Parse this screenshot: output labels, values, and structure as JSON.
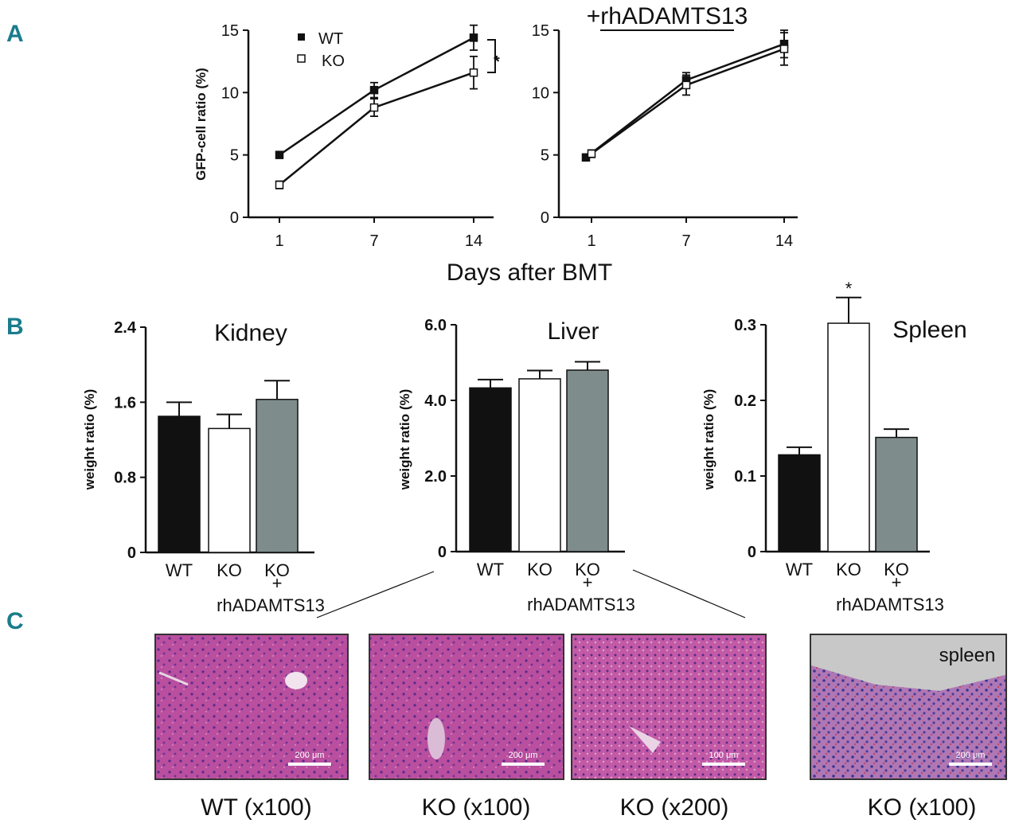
{
  "panel_labels": [
    "A",
    "B",
    "C"
  ],
  "chart_data": [
    {
      "type": "line",
      "panel": "A",
      "title": "",
      "xlabel": "Days after BMT",
      "ylabel": "GFP-cell ratio (%)",
      "x": [
        1,
        7,
        14
      ],
      "xticks": [
        "1",
        "7",
        "14"
      ],
      "ylim": [
        0,
        15
      ],
      "yticks": [
        "0",
        "5",
        "10",
        "15"
      ],
      "series": [
        {
          "name": "WT",
          "marker": "filled-square",
          "values": [
            5.0,
            10.2,
            14.4
          ],
          "errors": [
            0.2,
            0.6,
            1.0
          ]
        },
        {
          "name": "KO",
          "marker": "open-square",
          "values": [
            2.6,
            8.8,
            11.6
          ],
          "errors": [
            0.3,
            0.7,
            1.3
          ]
        }
      ],
      "annotation": "*"
    },
    {
      "type": "line",
      "panel": "A",
      "title": "+rhADAMTS13",
      "xlabel": "Days after BMT",
      "ylabel": "",
      "x": [
        1,
        7,
        14
      ],
      "xticks": [
        "1",
        "7",
        "14"
      ],
      "ylim": [
        0,
        15
      ],
      "yticks": [
        "0",
        "5",
        "10",
        "15"
      ],
      "series": [
        {
          "name": "WT",
          "marker": "filled-square",
          "values": [
            4.8,
            11.0,
            13.9
          ],
          "errors": [
            0.2,
            0.6,
            1.1
          ]
        },
        {
          "name": "KO",
          "marker": "open-square",
          "values": [
            5.1,
            10.6,
            13.5
          ],
          "errors": [
            0.3,
            0.8,
            1.3
          ]
        }
      ]
    },
    {
      "type": "bar",
      "panel": "B",
      "title": "Kidney",
      "ylabel": "weight ratio (%)",
      "categories": [
        "WT",
        "KO",
        "KO\n+\nrhADAMTS13"
      ],
      "category_labels": [
        "WT",
        "KO",
        "KO",
        "+",
        "rhADAMTS13"
      ],
      "values": [
        1.45,
        1.32,
        1.63
      ],
      "errors": [
        0.15,
        0.15,
        0.2
      ],
      "ylim": [
        0,
        2.4
      ],
      "yticks": [
        "0",
        "0.8",
        "1.6",
        "2.4"
      ],
      "colors": [
        "#111111",
        "#ffffff",
        "#7f8c8c"
      ]
    },
    {
      "type": "bar",
      "panel": "B",
      "title": "Liver",
      "ylabel": "weight ratio (%)",
      "categories": [
        "WT",
        "KO",
        "KO\n+\nrhADAMTS13"
      ],
      "category_labels": [
        "WT",
        "KO",
        "KO",
        "+",
        "rhADAMTS13"
      ],
      "values": [
        4.33,
        4.57,
        4.8
      ],
      "errors": [
        0.22,
        0.22,
        0.22
      ],
      "ylim": [
        0,
        6.0
      ],
      "yticks": [
        "0",
        "2.0",
        "4.0",
        "6.0"
      ],
      "colors": [
        "#111111",
        "#ffffff",
        "#7f8c8c"
      ]
    },
    {
      "type": "bar",
      "panel": "B",
      "title": "Spleen",
      "ylabel": "weight ratio (%)",
      "categories": [
        "WT",
        "KO",
        "KO\n+\nrhADAMTS13"
      ],
      "category_labels": [
        "WT",
        "KO",
        "KO",
        "+",
        "rhADAMTS13"
      ],
      "values": [
        0.128,
        0.302,
        0.151
      ],
      "errors": [
        0.01,
        0.034,
        0.011
      ],
      "ylim": [
        0,
        0.3
      ],
      "yticks": [
        "0",
        "0.1",
        "0.2",
        "0.3"
      ],
      "colors": [
        "#111111",
        "#ffffff",
        "#7f8c8c"
      ],
      "annotation": "*"
    }
  ],
  "histology": [
    {
      "caption": "WT (x100)",
      "scale": "200 μm",
      "label": ""
    },
    {
      "caption": "KO (x100)",
      "scale": "200 μm",
      "label": ""
    },
    {
      "caption": "KO (x200)",
      "scale": "100 μm",
      "label": ""
    },
    {
      "caption": "KO (x100)",
      "scale": "200 μm",
      "label": "spleen"
    }
  ],
  "colors": {
    "panel_letter": "#1a7c8c",
    "gray_bar": "#7f8c8c",
    "tissue": "#b94f9e"
  }
}
